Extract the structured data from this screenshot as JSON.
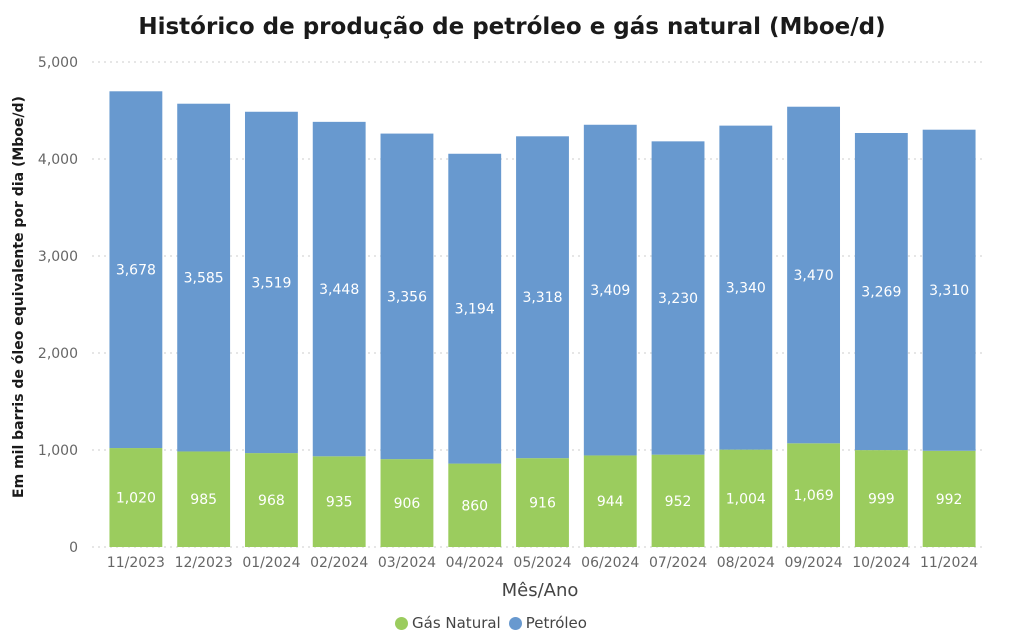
{
  "chart_data": {
    "type": "bar",
    "stacked": true,
    "title": "Histórico de produção de petróleo e gás natural (Mboe/d)",
    "xlabel": "Mês/Ano",
    "ylabel": "Em mil barris de óleo equivalente por dia (Mboe/d)",
    "ylim": [
      0,
      5000
    ],
    "yticks": [
      "0",
      "1,000",
      "2,000",
      "3,000",
      "4,000",
      "5,000"
    ],
    "grid": true,
    "legend_position": "bottom",
    "categories": [
      "11/2023",
      "12/2023",
      "01/2024",
      "02/2024",
      "03/2024",
      "04/2024",
      "05/2024",
      "06/2024",
      "07/2024",
      "08/2024",
      "09/2024",
      "10/2024",
      "11/2024"
    ],
    "series": [
      {
        "name": "Gás Natural",
        "color": "#9bcc5e",
        "values": [
          1020,
          985,
          968,
          935,
          906,
          860,
          916,
          944,
          952,
          1004,
          1069,
          999,
          992
        ],
        "labels": [
          "1,020",
          "985",
          "968",
          "935",
          "906",
          "860",
          "916",
          "944",
          "952",
          "1,004",
          "1,069",
          "999",
          "992"
        ]
      },
      {
        "name": "Petróleo",
        "color": "#6899cf",
        "values": [
          3678,
          3585,
          3519,
          3448,
          3356,
          3194,
          3318,
          3409,
          3230,
          3340,
          3470,
          3269,
          3310
        ],
        "labels": [
          "3,678",
          "3,585",
          "3,519",
          "3,448",
          "3,356",
          "3,194",
          "3,318",
          "3,409",
          "3,230",
          "3,340",
          "3,470",
          "3,269",
          "3,310"
        ]
      }
    ]
  }
}
